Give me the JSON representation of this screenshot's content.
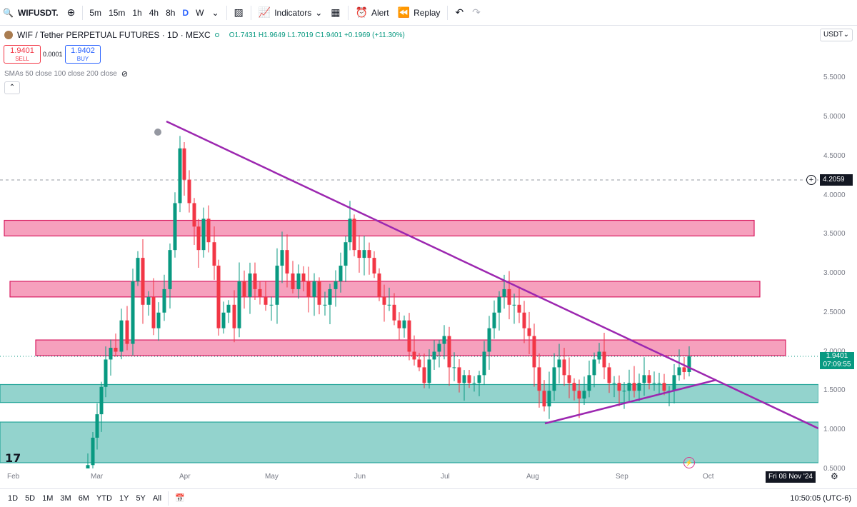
{
  "toolbar": {
    "symbol": "WIFUSDT.",
    "timeframes": [
      "5m",
      "15m",
      "1h",
      "4h",
      "8h",
      "D",
      "W"
    ],
    "active_timeframe": "D",
    "indicators_label": "Indicators",
    "alert_label": "Alert",
    "replay_label": "Replay"
  },
  "legend": {
    "title": "WIF / Tether PERPETUAL FUTURES · 1D · MEXC",
    "ohlc": "O1.7431 H1.9649 L1.7019 C1.9401 +0.1969 (+11.30%)",
    "sell_price": "1.9401",
    "sell_label": "SELL",
    "buy_price": "1.9402",
    "buy_label": "BUY",
    "spread": "0.0001",
    "smas": "SMAs 50 close 100 close 200 close"
  },
  "price_axis": {
    "currency": "USDT",
    "ticks": [
      "5.5000",
      "5.0000",
      "4.5000",
      "4.0000",
      "3.5000",
      "3.0000",
      "2.5000",
      "2.0000",
      "1.5000",
      "1.0000",
      "0.5000"
    ],
    "current_price": "1.9401",
    "countdown": "07:09:55",
    "crosshair_price": "4.2059"
  },
  "time_axis": {
    "labels": [
      "Feb",
      "Mar",
      "Apr",
      "May",
      "Jun",
      "Jul",
      "Aug",
      "Sep",
      "Oct"
    ],
    "crosshair_date": "Fri 08 Nov '24"
  },
  "bottombar": {
    "ranges": [
      "1D",
      "5D",
      "1M",
      "3M",
      "6M",
      "YTD",
      "1Y",
      "5Y",
      "All"
    ],
    "clock": "10:50:05 (UTC-6)"
  },
  "colors": {
    "up": "#089981",
    "down": "#f23645",
    "resistance_zone": "#f48fb1",
    "support_zone": "#80cbc4",
    "trendline": "#9c27b0"
  },
  "chart_data": {
    "type": "candlestick",
    "ylim": [
      0.45,
      5.75
    ],
    "zones": [
      {
        "kind": "resistance",
        "range": [
          3.48,
          3.68
        ]
      },
      {
        "kind": "resistance",
        "range": [
          2.7,
          2.9
        ]
      },
      {
        "kind": "resistance",
        "range": [
          1.95,
          2.15
        ]
      },
      {
        "kind": "support",
        "range": [
          1.35,
          1.58
        ]
      },
      {
        "kind": "support",
        "range": [
          0.58,
          1.1
        ]
      }
    ]
  }
}
